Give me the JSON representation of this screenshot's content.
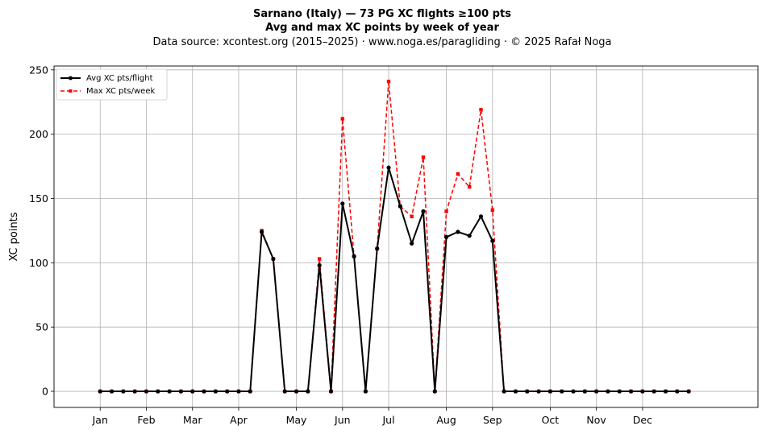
{
  "chart_data": {
    "type": "line",
    "title": "Sarnano (Italy)  —  73 PG XC flights ≥100 pts",
    "subtitle": "Avg and max XC points by week of year",
    "source": "Data source: xcontest.org (2015–2025)  ·  www.noga.es/paragliding  ·  © 2025 Rafał Noga",
    "xlabel": "",
    "ylabel": "XC points",
    "xlim": [
      -4,
      57
    ],
    "ylim": [
      -12.5,
      253
    ],
    "yticks": [
      0,
      50,
      100,
      150,
      200,
      250
    ],
    "month_ticks": [
      {
        "label": "Jan",
        "week": 0
      },
      {
        "label": "Feb",
        "week": 4
      },
      {
        "label": "Mar",
        "week": 8
      },
      {
        "label": "Apr",
        "week": 12
      },
      {
        "label": "May",
        "week": 17
      },
      {
        "label": "Jun",
        "week": 21
      },
      {
        "label": "Jul",
        "week": 25
      },
      {
        "label": "Aug",
        "week": 30
      },
      {
        "label": "Sep",
        "week": 34
      },
      {
        "label": "Oct",
        "week": 39
      },
      {
        "label": "Nov",
        "week": 43
      },
      {
        "label": "Dec",
        "week": 47
      }
    ],
    "grid": true,
    "legend_position": "top-left",
    "x": [
      0,
      1,
      2,
      3,
      4,
      5,
      6,
      7,
      8,
      9,
      10,
      11,
      12,
      13,
      14,
      15,
      16,
      17,
      18,
      19,
      20,
      21,
      22,
      23,
      24,
      25,
      26,
      27,
      28,
      29,
      30,
      31,
      32,
      33,
      34,
      35,
      36,
      37,
      38,
      39,
      40,
      41,
      42,
      43,
      44,
      45,
      46,
      47,
      48,
      49,
      50,
      51
    ],
    "series": [
      {
        "name": "Avg XC pts/flight",
        "color": "#000000",
        "style": "solid-circle",
        "values": [
          0,
          0,
          0,
          0,
          0,
          0,
          0,
          0,
          0,
          0,
          0,
          0,
          0,
          0,
          124,
          103,
          0,
          0,
          0,
          98,
          0,
          146,
          105,
          0,
          111,
          174,
          144,
          115,
          140,
          0,
          120,
          124,
          121,
          136,
          117,
          0,
          0,
          0,
          0,
          0,
          0,
          0,
          0,
          0,
          0,
          0,
          0,
          0,
          0,
          0,
          0,
          0
        ]
      },
      {
        "name": "Max XC pts/week",
        "color": "#ff0000",
        "style": "dashed-square",
        "values": [
          0,
          0,
          0,
          0,
          0,
          0,
          0,
          0,
          0,
          0,
          0,
          0,
          0,
          0,
          125,
          103,
          0,
          0,
          0,
          103,
          0,
          212,
          105,
          0,
          111,
          241,
          144,
          136,
          182,
          0,
          140,
          169,
          159,
          219,
          141,
          0,
          0,
          0,
          0,
          0,
          0,
          0,
          0,
          0,
          0,
          0,
          0,
          0,
          0,
          0,
          0,
          0
        ]
      }
    ]
  }
}
